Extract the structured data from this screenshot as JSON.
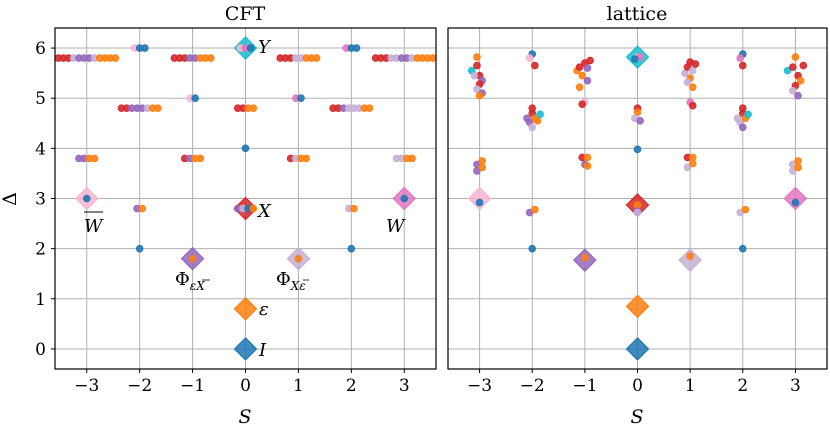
{
  "chart_data": [
    {
      "panel": "CFT",
      "type": "scatter",
      "title": "CFT",
      "xlabel": "S",
      "ylabel": "Δ",
      "xlim": [
        -3.6,
        3.6
      ],
      "ylim": [
        -0.4,
        6.4
      ],
      "xticks": [
        -3,
        -2,
        -1,
        0,
        1,
        2,
        3
      ],
      "xtick_labels": [
        "−3",
        "−2",
        "−1",
        "0",
        "1",
        "2",
        "3"
      ],
      "yticks": [
        0,
        1,
        2,
        3,
        4,
        5,
        6
      ],
      "ytick_labels": [
        "0",
        "1",
        "2",
        "3",
        "4",
        "5",
        "6"
      ],
      "grid": true,
      "colors": {
        "blue": "#1f77b4",
        "orange": "#ff7f0e",
        "purple": "#9467bd",
        "lightpurple": "#c5b0d5",
        "pink": "#e377c2",
        "lightpink": "#f7b6d2",
        "red": "#d62728",
        "cyan": "#17becf"
      },
      "primaries": [
        {
          "S": 0,
          "delta": 0.0,
          "color": "blue",
          "label": "I"
        },
        {
          "S": 0,
          "delta": 0.8,
          "color": "orange",
          "label": "ε"
        },
        {
          "S": -1,
          "delta": 1.8,
          "color": "purple",
          "label": "Φ",
          "label_sub": "εX̄"
        },
        {
          "S": 1,
          "delta": 1.8,
          "color": "lightpurple",
          "label": "Φ",
          "label_sub": "Xε̄"
        },
        {
          "S": 0,
          "delta": 2.8,
          "color": "red",
          "label": "X"
        },
        {
          "S": -3,
          "delta": 3.0,
          "color": "lightpink",
          "label": "W̄"
        },
        {
          "S": 3,
          "delta": 3.0,
          "color": "pink",
          "label": "W"
        },
        {
          "S": 0,
          "delta": 6.0,
          "color": "cyan",
          "label": "Y"
        }
      ],
      "descendant_rows": [
        {
          "S": 0,
          "delta": 4.0,
          "colors": [
            "blue"
          ]
        },
        {
          "S": -2,
          "delta": 2.0,
          "colors": [
            "blue"
          ]
        },
        {
          "S": 2,
          "delta": 2.0,
          "colors": [
            "blue"
          ]
        },
        {
          "S": -3,
          "delta": 3.0,
          "colors": [
            "blue"
          ]
        },
        {
          "S": 3,
          "delta": 3.0,
          "colors": [
            "blue"
          ]
        },
        {
          "S": 0,
          "delta": 2.8,
          "colors": [
            "purple",
            "lightpurple",
            "blue",
            "orange"
          ]
        },
        {
          "S": -2,
          "delta": 2.8,
          "colors": [
            "purple",
            "orange"
          ]
        },
        {
          "S": 2,
          "delta": 2.8,
          "colors": [
            "lightpurple",
            "orange"
          ]
        },
        {
          "S": -1,
          "delta": 1.8,
          "colors": [
            "orange"
          ]
        },
        {
          "S": 1,
          "delta": 1.8,
          "colors": [
            "orange"
          ]
        },
        {
          "S": -3,
          "delta": 3.8,
          "colors": [
            "purple",
            "purple",
            "orange",
            "orange"
          ]
        },
        {
          "S": -1,
          "delta": 3.8,
          "colors": [
            "red",
            "purple",
            "orange",
            "orange"
          ]
        },
        {
          "S": 1,
          "delta": 3.8,
          "colors": [
            "red",
            "lightpurple",
            "orange",
            "orange"
          ]
        },
        {
          "S": 3,
          "delta": 3.8,
          "colors": [
            "lightpurple",
            "lightpurple",
            "orange",
            "orange"
          ]
        },
        {
          "S": -2,
          "delta": 4.8,
          "colors": [
            "red",
            "red",
            "purple",
            "purple",
            "purple",
            "lightpurple",
            "orange",
            "orange"
          ]
        },
        {
          "S": 0,
          "delta": 4.8,
          "colors": [
            "red",
            "red",
            "orange",
            "orange"
          ]
        },
        {
          "S": 2,
          "delta": 4.8,
          "colors": [
            "red",
            "red",
            "purple",
            "lightpurple",
            "lightpurple",
            "lightpurple",
            "orange",
            "orange"
          ]
        },
        {
          "S": -1,
          "delta": 5.0,
          "colors": [
            "lightpink",
            "blue"
          ]
        },
        {
          "S": 1,
          "delta": 5.0,
          "colors": [
            "pink",
            "blue"
          ]
        },
        {
          "S": -2,
          "delta": 6.0,
          "colors": [
            "lightpink",
            "blue",
            "blue"
          ]
        },
        {
          "S": 2,
          "delta": 6.0,
          "colors": [
            "pink",
            "blue",
            "blue"
          ]
        },
        {
          "S": 0,
          "delta": 6.0,
          "colors": [
            "lightpink",
            "pink",
            "blue"
          ]
        },
        {
          "S": -3,
          "delta": 5.8,
          "colors": [
            "red",
            "red",
            "red",
            "lightpurple",
            "purple",
            "purple",
            "purple",
            "lightpurple",
            "orange",
            "orange",
            "orange",
            "orange"
          ]
        },
        {
          "S": -1,
          "delta": 5.8,
          "colors": [
            "red",
            "red",
            "red",
            "purple",
            "purple",
            "orange",
            "orange",
            "orange"
          ]
        },
        {
          "S": 1,
          "delta": 5.8,
          "colors": [
            "red",
            "red",
            "red",
            "lightpurple",
            "lightpurple",
            "orange",
            "orange",
            "orange"
          ]
        },
        {
          "S": 3,
          "delta": 5.8,
          "colors": [
            "red",
            "red",
            "red",
            "lightpurple",
            "lightpurple",
            "purple",
            "purple",
            "lightpurple",
            "orange",
            "orange",
            "orange",
            "orange"
          ]
        }
      ]
    },
    {
      "panel": "lattice",
      "type": "scatter",
      "title": "lattice",
      "xlabel": "S",
      "ylabel": "",
      "xlim": [
        -3.6,
        3.6
      ],
      "ylim": [
        -0.4,
        6.4
      ],
      "xticks": [
        -3,
        -2,
        -1,
        0,
        1,
        2,
        3
      ],
      "xtick_labels": [
        "−3",
        "−2",
        "−1",
        "0",
        "1",
        "2",
        "3"
      ],
      "grid": true,
      "primaries": [
        {
          "S": 0,
          "delta": 0.0,
          "color": "blue"
        },
        {
          "S": 0,
          "delta": 0.85,
          "color": "orange"
        },
        {
          "S": -1,
          "delta": 1.77,
          "color": "purple"
        },
        {
          "S": 1,
          "delta": 1.77,
          "color": "lightpurple"
        },
        {
          "S": 0,
          "delta": 2.87,
          "color": "red"
        },
        {
          "S": -3,
          "delta": 3.0,
          "color": "lightpink"
        },
        {
          "S": 3,
          "delta": 3.0,
          "color": "pink"
        },
        {
          "S": 0,
          "delta": 5.82,
          "color": "cyan"
        }
      ],
      "points": [
        {
          "S": 0,
          "delta": 2.87,
          "color": "orange"
        },
        {
          "S": 0,
          "delta": 2.75,
          "color": "purple"
        },
        {
          "S": 0,
          "delta": 2.72,
          "color": "lightpurple"
        },
        {
          "S": -3,
          "delta": 2.92,
          "color": "blue"
        },
        {
          "S": 3,
          "delta": 2.92,
          "color": "blue"
        },
        {
          "S": -1,
          "delta": 1.82,
          "color": "orange"
        },
        {
          "S": 1,
          "delta": 1.85,
          "color": "orange"
        },
        {
          "S": 0,
          "delta": 3.98,
          "color": "blue"
        },
        {
          "S": -2,
          "delta": 2.0,
          "color": "blue"
        },
        {
          "S": 2,
          "delta": 2.0,
          "color": "blue"
        },
        {
          "S": -2.05,
          "delta": 2.72,
          "color": "purple"
        },
        {
          "S": -1.95,
          "delta": 2.78,
          "color": "orange"
        },
        {
          "S": 1.95,
          "delta": 2.72,
          "color": "lightpurple"
        },
        {
          "S": 2.05,
          "delta": 2.78,
          "color": "orange"
        },
        {
          "S": -3.05,
          "delta": 3.55,
          "color": "purple"
        },
        {
          "S": -3.05,
          "delta": 3.68,
          "color": "purple"
        },
        {
          "S": -2.95,
          "delta": 3.62,
          "color": "orange"
        },
        {
          "S": -2.95,
          "delta": 3.75,
          "color": "orange"
        },
        {
          "S": -1.05,
          "delta": 3.82,
          "color": "red"
        },
        {
          "S": -0.95,
          "delta": 3.82,
          "color": "orange"
        },
        {
          "S": -1.0,
          "delta": 3.68,
          "color": "purple"
        },
        {
          "S": -0.95,
          "delta": 3.65,
          "color": "orange"
        },
        {
          "S": 0.95,
          "delta": 3.82,
          "color": "red"
        },
        {
          "S": 1.05,
          "delta": 3.82,
          "color": "orange"
        },
        {
          "S": 0.95,
          "delta": 3.62,
          "color": "lightpurple"
        },
        {
          "S": 1.05,
          "delta": 3.7,
          "color": "orange"
        },
        {
          "S": 2.95,
          "delta": 3.55,
          "color": "lightpurple"
        },
        {
          "S": 2.95,
          "delta": 3.68,
          "color": "lightpurple"
        },
        {
          "S": 3.05,
          "delta": 3.62,
          "color": "orange"
        },
        {
          "S": 3.05,
          "delta": 3.75,
          "color": "orange"
        },
        {
          "S": -2.0,
          "delta": 4.8,
          "color": "red"
        },
        {
          "S": -2.0,
          "delta": 4.7,
          "color": "red"
        },
        {
          "S": -2.1,
          "delta": 4.6,
          "color": "purple"
        },
        {
          "S": -2.05,
          "delta": 4.52,
          "color": "purple"
        },
        {
          "S": -2.0,
          "delta": 4.42,
          "color": "lightpurple"
        },
        {
          "S": -1.95,
          "delta": 4.6,
          "color": "orange"
        },
        {
          "S": -1.9,
          "delta": 4.55,
          "color": "orange"
        },
        {
          "S": -1.85,
          "delta": 4.68,
          "color": "cyan"
        },
        {
          "S": 2.0,
          "delta": 4.8,
          "color": "red"
        },
        {
          "S": 2.0,
          "delta": 4.7,
          "color": "red"
        },
        {
          "S": 1.9,
          "delta": 4.6,
          "color": "lightpurple"
        },
        {
          "S": 1.95,
          "delta": 4.52,
          "color": "lightpurple"
        },
        {
          "S": 2.0,
          "delta": 4.42,
          "color": "purple"
        },
        {
          "S": 2.05,
          "delta": 4.6,
          "color": "orange"
        },
        {
          "S": 2.1,
          "delta": 4.68,
          "color": "cyan"
        },
        {
          "S": -1.0,
          "delta": 4.92,
          "color": "lightpink"
        },
        {
          "S": -1.05,
          "delta": 4.88,
          "color": "red"
        },
        {
          "S": 1.0,
          "delta": 4.92,
          "color": "pink"
        },
        {
          "S": 1.05,
          "delta": 4.85,
          "color": "red"
        },
        {
          "S": 0.0,
          "delta": 4.8,
          "color": "red"
        },
        {
          "S": 0.0,
          "delta": 4.72,
          "color": "orange"
        },
        {
          "S": -0.05,
          "delta": 4.6,
          "color": "lightpurple"
        },
        {
          "S": 0.05,
          "delta": 4.55,
          "color": "purple"
        },
        {
          "S": 0.0,
          "delta": 5.82,
          "color": "lightpink"
        },
        {
          "S": 0.05,
          "delta": 5.82,
          "color": "pink"
        },
        {
          "S": -0.05,
          "delta": 5.78,
          "color": "blue"
        },
        {
          "S": -3.15,
          "delta": 5.55,
          "color": "cyan"
        },
        {
          "S": -3.05,
          "delta": 5.82,
          "color": "orange"
        },
        {
          "S": -3.05,
          "delta": 5.65,
          "color": "red"
        },
        {
          "S": -3.0,
          "delta": 5.45,
          "color": "red"
        },
        {
          "S": -2.95,
          "delta": 5.35,
          "color": "purple"
        },
        {
          "S": -3.0,
          "delta": 5.28,
          "color": "red"
        },
        {
          "S": -3.05,
          "delta": 5.18,
          "color": "lightpurple"
        },
        {
          "S": -2.95,
          "delta": 5.1,
          "color": "purple"
        },
        {
          "S": -3.0,
          "delta": 5.05,
          "color": "orange"
        },
        {
          "S": -3.1,
          "delta": 5.45,
          "color": "lightpurple"
        },
        {
          "S": -2.0,
          "delta": 5.88,
          "color": "blue"
        },
        {
          "S": -2.05,
          "delta": 5.8,
          "color": "lightpink"
        },
        {
          "S": -1.95,
          "delta": 5.65,
          "color": "red"
        },
        {
          "S": -1.15,
          "delta": 5.55,
          "color": "orange"
        },
        {
          "S": -1.1,
          "delta": 5.62,
          "color": "red"
        },
        {
          "S": -1.0,
          "delta": 5.7,
          "color": "red"
        },
        {
          "S": -0.95,
          "delta": 5.6,
          "color": "purple"
        },
        {
          "S": -0.9,
          "delta": 5.75,
          "color": "red"
        },
        {
          "S": -1.05,
          "delta": 5.45,
          "color": "orange"
        },
        {
          "S": -0.95,
          "delta": 5.35,
          "color": "purple"
        },
        {
          "S": -1.1,
          "delta": 5.22,
          "color": "orange"
        },
        {
          "S": 0.9,
          "delta": 5.5,
          "color": "lightpurple"
        },
        {
          "S": 0.95,
          "delta": 5.62,
          "color": "red"
        },
        {
          "S": 1.0,
          "delta": 5.72,
          "color": "red"
        },
        {
          "S": 1.05,
          "delta": 5.55,
          "color": "lightpurple"
        },
        {
          "S": 1.1,
          "delta": 5.68,
          "color": "red"
        },
        {
          "S": 1.0,
          "delta": 5.4,
          "color": "orange"
        },
        {
          "S": 0.95,
          "delta": 5.32,
          "color": "lightpurple"
        },
        {
          "S": 1.05,
          "delta": 5.22,
          "color": "orange"
        },
        {
          "S": 2.0,
          "delta": 5.88,
          "color": "blue"
        },
        {
          "S": 1.95,
          "delta": 5.8,
          "color": "pink"
        },
        {
          "S": 2.0,
          "delta": 5.65,
          "color": "red"
        },
        {
          "S": 2.85,
          "delta": 5.55,
          "color": "cyan"
        },
        {
          "S": 2.95,
          "delta": 5.62,
          "color": "red"
        },
        {
          "S": 3.0,
          "delta": 5.82,
          "color": "orange"
        },
        {
          "S": 3.05,
          "delta": 5.45,
          "color": "red"
        },
        {
          "S": 3.1,
          "delta": 5.35,
          "color": "orange"
        },
        {
          "S": 3.15,
          "delta": 5.65,
          "color": "red"
        },
        {
          "S": 3.0,
          "delta": 5.25,
          "color": "red"
        },
        {
          "S": 2.95,
          "delta": 5.15,
          "color": "lightpurple"
        },
        {
          "S": 3.05,
          "delta": 5.05,
          "color": "purple"
        }
      ]
    }
  ],
  "annotations": {
    "I": "I",
    "eps": "ε",
    "X": "X",
    "Y": "Y",
    "W": "W",
    "Wbar": "W",
    "phi": "Φ",
    "phi_left_sub": "εX",
    "phi_right_sub": "Xε"
  }
}
